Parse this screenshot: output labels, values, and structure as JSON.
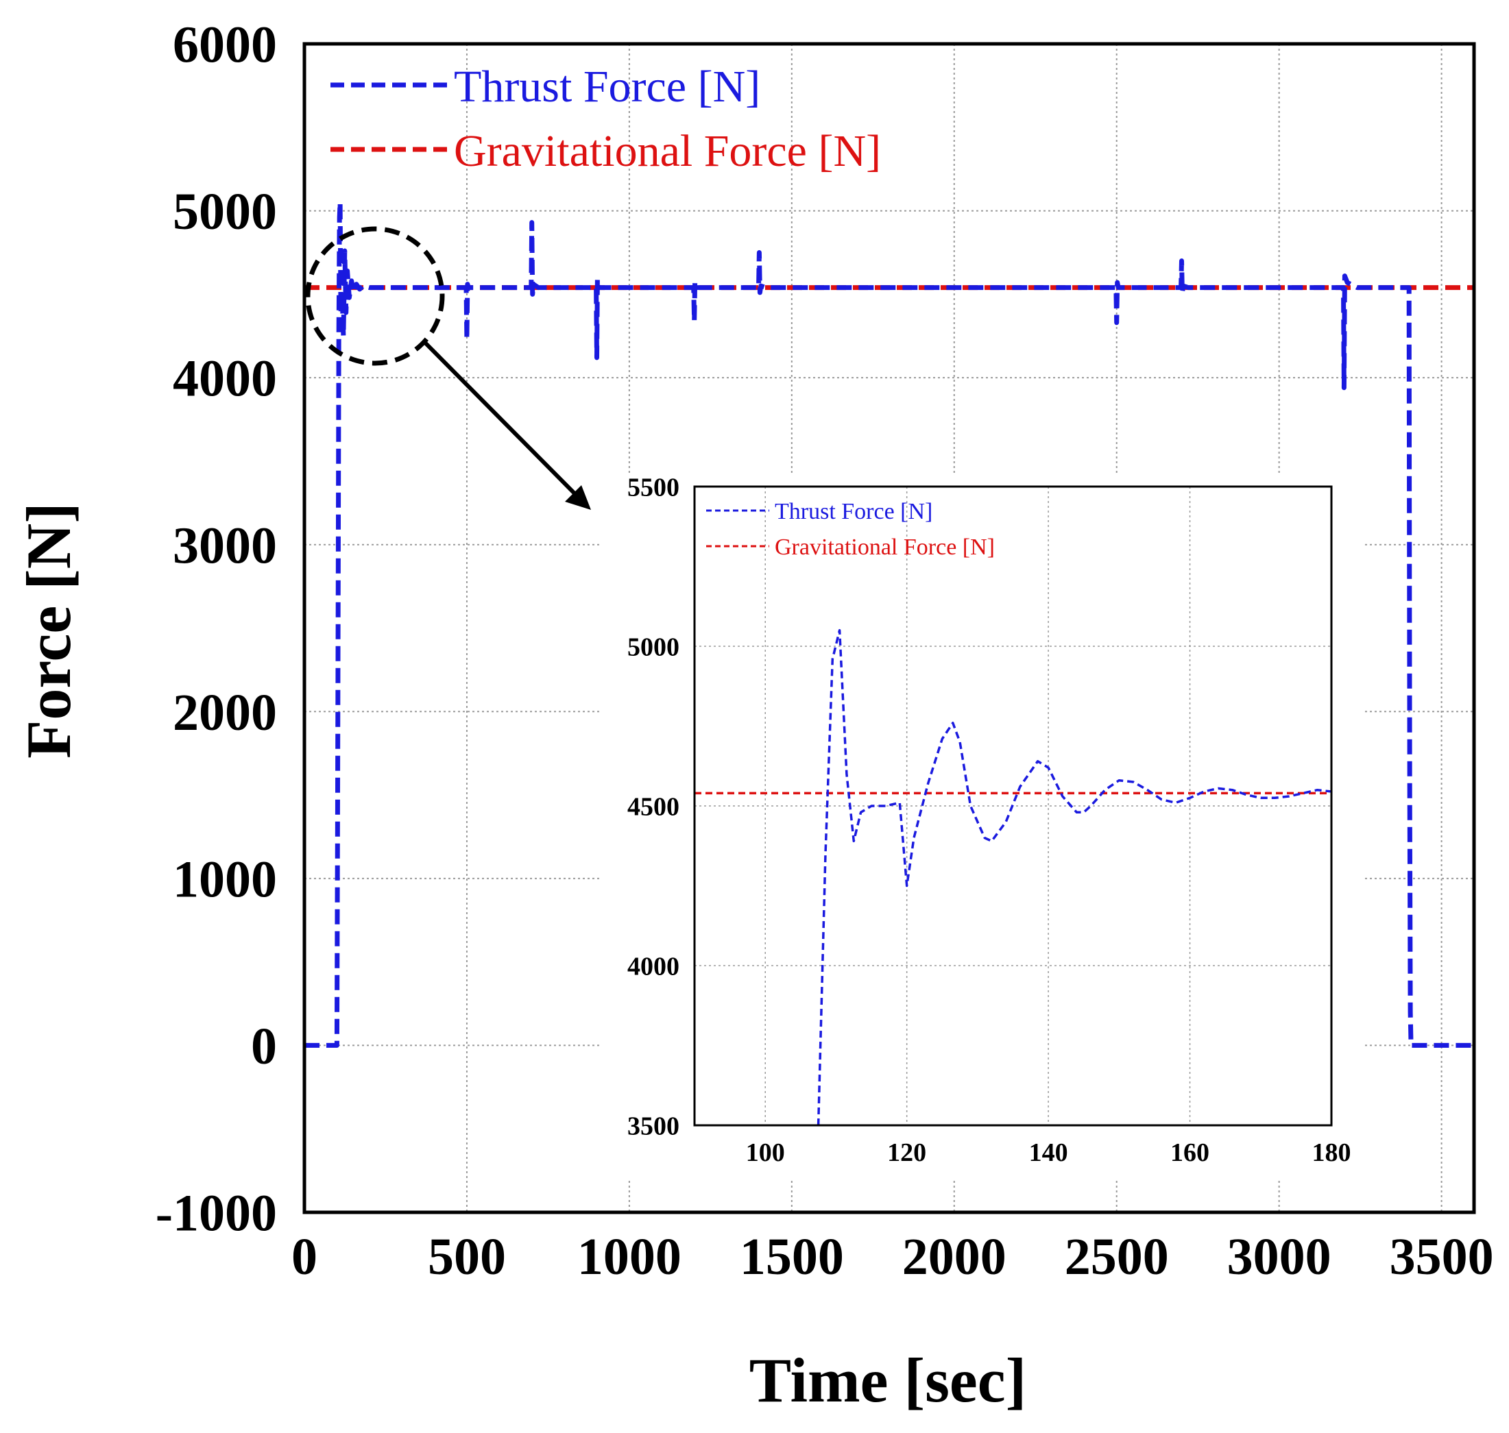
{
  "chart_data": [
    {
      "id": "main",
      "type": "line",
      "xlabel": "Time [sec]",
      "ylabel": "Force [N]",
      "xlim": [
        0,
        3600
      ],
      "ylim": [
        -1000,
        6000
      ],
      "xticks": [
        0,
        500,
        1000,
        1500,
        2000,
        2500,
        3000,
        3500
      ],
      "yticks": [
        -1000,
        0,
        1000,
        2000,
        3000,
        4000,
        5000,
        6000
      ],
      "grid": true,
      "legend_position": "top-left",
      "series": [
        {
          "name": "Thrust Force [N]",
          "color": "#1a1adf",
          "style": "dashed",
          "x": [
            0,
            100,
            102,
            104,
            106,
            108,
            110,
            112,
            114,
            116,
            120,
            124,
            128,
            132,
            138,
            145,
            152,
            160,
            170,
            180,
            200,
            300,
            498,
            500,
            502,
            505,
            520,
            698,
            700,
            702,
            705,
            720,
            898,
            900,
            902,
            905,
            920,
            1198,
            1200,
            1202,
            1205,
            1220,
            1398,
            1400,
            1402,
            1405,
            1420,
            2498,
            2500,
            2502,
            2505,
            2520,
            2698,
            2700,
            2702,
            2705,
            2720,
            3198,
            3200,
            3202,
            3210,
            3240,
            3280,
            3398,
            3400,
            3402,
            3404,
            3406,
            3408,
            3420,
            3600
          ],
          "y": [
            0,
            0,
            1200,
            2800,
            4300,
            4960,
            5050,
            4390,
            4500,
            4500,
            4250,
            4760,
            4390,
            4640,
            4480,
            4580,
            4510,
            4560,
            4530,
            4550,
            4540,
            4540,
            4540,
            4230,
            4560,
            4540,
            4540,
            4540,
            4930,
            4500,
            4560,
            4540,
            4540,
            4120,
            4590,
            4540,
            4540,
            4540,
            4340,
            4570,
            4540,
            4540,
            4540,
            4750,
            4510,
            4550,
            4540,
            4540,
            4330,
            4570,
            4540,
            4540,
            4540,
            4700,
            4510,
            4550,
            4540,
            4540,
            3940,
            4610,
            4570,
            4540,
            4540,
            4540,
            4540,
            1500,
            200,
            0,
            0,
            0,
            0
          ]
        },
        {
          "name": "Gravitational Force [N]",
          "color": "#dd1111",
          "style": "dashed",
          "x": [
            0,
            3600
          ],
          "y": [
            4540,
            4540
          ]
        }
      ],
      "annotation": "zoom circle around t = 100–180 sec, arrow to inset"
    },
    {
      "id": "inset",
      "type": "line",
      "xlabel": "",
      "ylabel": "",
      "xlim": [
        90,
        180
      ],
      "ylim": [
        3500,
        5500
      ],
      "xticks": [
        100,
        120,
        140,
        160,
        180
      ],
      "yticks": [
        3500,
        4000,
        4500,
        5000,
        5500
      ],
      "grid": true,
      "legend_position": "top-left",
      "series": [
        {
          "name": "Thrust Force [N]",
          "color": "#1a1adf",
          "style": "dashed",
          "x": [
            107.5,
            108.5,
            109.5,
            110.5,
            111.5,
            112.5,
            113.5,
            115,
            117,
            119,
            120,
            121,
            123,
            125,
            126.5,
            127.5,
            129,
            131,
            132,
            134,
            136,
            138.5,
            140,
            142,
            144,
            145,
            146,
            148,
            150,
            152,
            154,
            156,
            158,
            160,
            162,
            164,
            166,
            168,
            170,
            172,
            174,
            176,
            178,
            180
          ],
          "y": [
            3500,
            4350,
            4960,
            5050,
            4600,
            4390,
            4480,
            4500,
            4500,
            4510,
            4250,
            4400,
            4570,
            4710,
            4760,
            4700,
            4500,
            4400,
            4390,
            4450,
            4560,
            4640,
            4620,
            4530,
            4480,
            4480,
            4500,
            4550,
            4580,
            4575,
            4550,
            4520,
            4510,
            4525,
            4545,
            4555,
            4550,
            4535,
            4525,
            4525,
            4530,
            4540,
            4550,
            4545
          ]
        },
        {
          "name": "Gravitational Force [N]",
          "color": "#dd1111",
          "style": "dashed",
          "x": [
            90,
            180
          ],
          "y": [
            4540,
            4540
          ]
        }
      ]
    }
  ]
}
